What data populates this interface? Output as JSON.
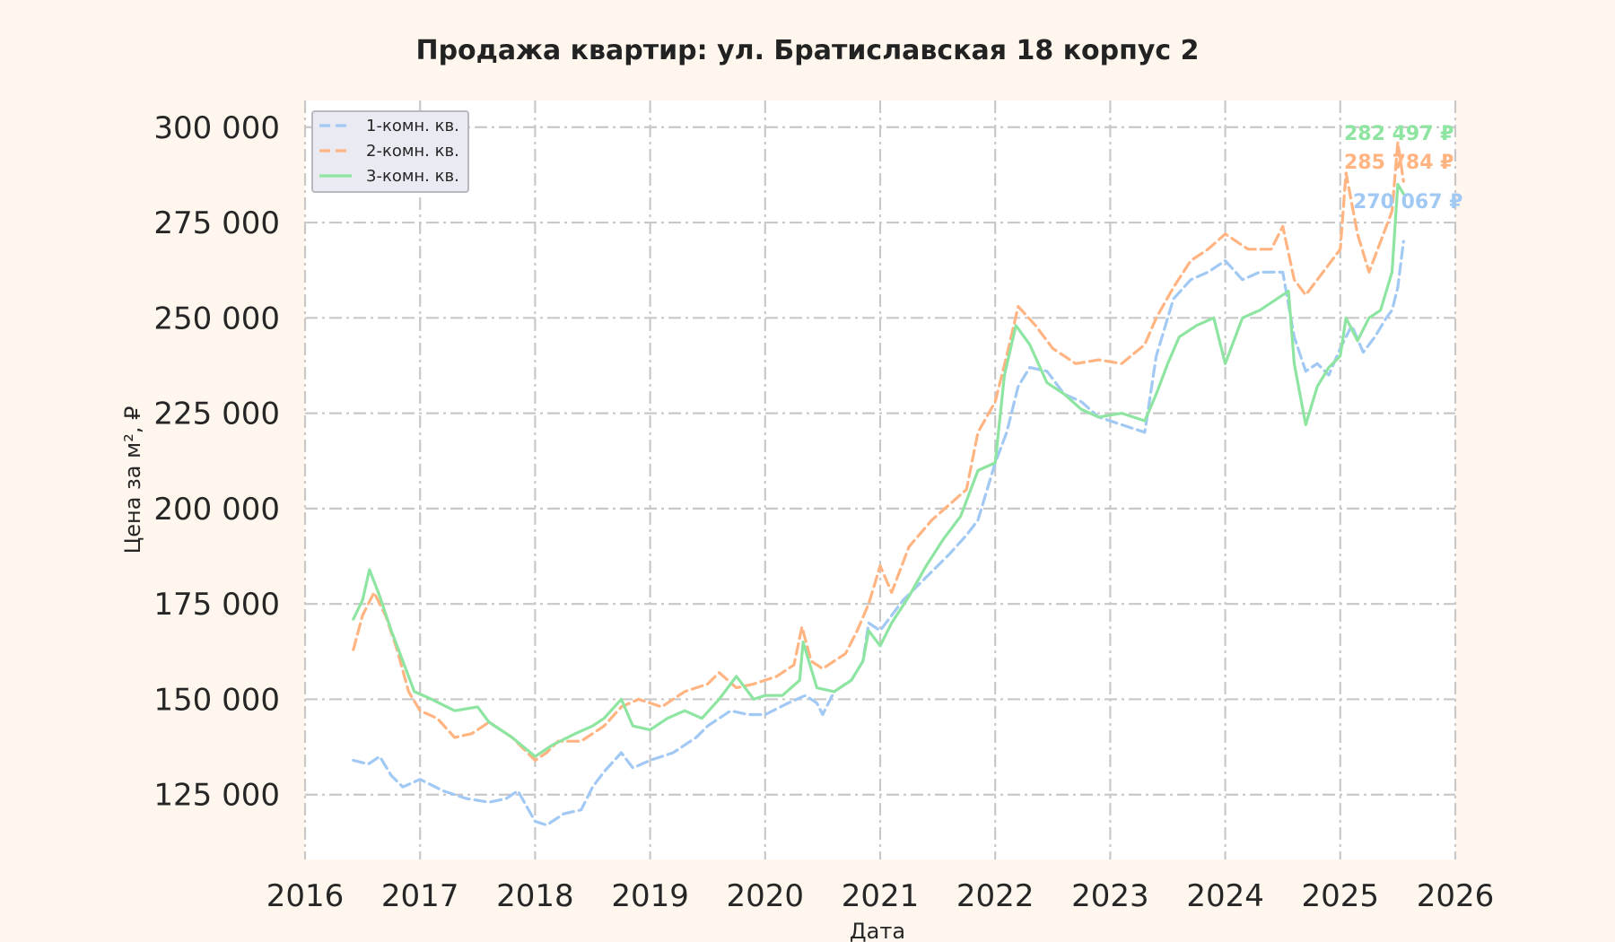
{
  "chart_data": {
    "type": "line",
    "title": "Продажа квартир: ул. Братиславская 18 корпус 2",
    "xlabel": "Дата",
    "ylabel": "Цена за м², ₽",
    "xlim": [
      2016.0,
      2026.0
    ],
    "ylim": [
      108000,
      307000
    ],
    "x_ticks": [
      "2016",
      "2017",
      "2018",
      "2019",
      "2020",
      "2021",
      "2022",
      "2023",
      "2024",
      "2025",
      "2026"
    ],
    "y_ticks": [
      {
        "value": 125000,
        "label": "125 000"
      },
      {
        "value": 150000,
        "label": "150 000"
      },
      {
        "value": 175000,
        "label": "175 000"
      },
      {
        "value": 200000,
        "label": "200 000"
      },
      {
        "value": 225000,
        "label": "225 000"
      },
      {
        "value": 250000,
        "label": "250 000"
      },
      {
        "value": 275000,
        "label": "275 000"
      },
      {
        "value": 300000,
        "label": "300 000"
      }
    ],
    "grid": true,
    "legend_position": "top-left",
    "series": [
      {
        "name": "1-комн. кв.",
        "color": "#a1c9f4",
        "dash": "dashed",
        "x": [
          2016.42,
          2016.55,
          2016.65,
          2016.75,
          2016.85,
          2017.0,
          2017.2,
          2017.4,
          2017.6,
          2017.75,
          2017.85,
          2018.0,
          2018.1,
          2018.25,
          2018.4,
          2018.5,
          2018.6,
          2018.75,
          2018.85,
          2019.0,
          2019.2,
          2019.4,
          2019.5,
          2019.6,
          2019.7,
          2019.85,
          2020.0,
          2020.2,
          2020.35,
          2020.45,
          2020.5,
          2020.6,
          2020.75,
          2020.85,
          2020.9,
          2021.0,
          2021.2,
          2021.4,
          2021.6,
          2021.75,
          2021.85,
          2022.0,
          2022.1,
          2022.2,
          2022.3,
          2022.45,
          2022.6,
          2022.75,
          2022.9,
          2023.1,
          2023.3,
          2023.4,
          2023.55,
          2023.7,
          2023.85,
          2024.0,
          2024.15,
          2024.3,
          2024.5,
          2024.6,
          2024.7,
          2024.8,
          2024.9,
          2025.0,
          2025.1,
          2025.2,
          2025.3,
          2025.4,
          2025.45,
          2025.5,
          2025.55
        ],
        "values": [
          134000,
          133000,
          135000,
          130000,
          127000,
          129000,
          126000,
          124000,
          123000,
          124000,
          126000,
          118000,
          117000,
          120000,
          121000,
          127000,
          131000,
          136000,
          132000,
          134000,
          136000,
          140000,
          143000,
          145000,
          147000,
          146000,
          146000,
          149000,
          151000,
          149000,
          146000,
          152000,
          155000,
          160000,
          170000,
          168000,
          176000,
          182000,
          188000,
          193000,
          197000,
          212000,
          220000,
          232000,
          237000,
          236000,
          230000,
          228000,
          224000,
          222000,
          220000,
          240000,
          255000,
          260000,
          262000,
          265000,
          260000,
          262000,
          262000,
          245000,
          236000,
          238000,
          235000,
          242000,
          248000,
          241000,
          245000,
          250000,
          252000,
          258000,
          270067
        ]
      },
      {
        "name": "2-комн. кв.",
        "color": "#ffb482",
        "dash": "dashed",
        "x": [
          2016.42,
          2016.5,
          2016.6,
          2016.7,
          2016.8,
          2016.9,
          2017.0,
          2017.15,
          2017.3,
          2017.45,
          2017.6,
          2017.8,
          2018.0,
          2018.1,
          2018.2,
          2018.4,
          2018.5,
          2018.6,
          2018.75,
          2018.9,
          2019.1,
          2019.3,
          2019.5,
          2019.6,
          2019.75,
          2019.9,
          2020.1,
          2020.25,
          2020.32,
          2020.4,
          2020.5,
          2020.7,
          2020.8,
          2020.9,
          2021.0,
          2021.1,
          2021.25,
          2021.45,
          2021.6,
          2021.75,
          2021.85,
          2022.0,
          2022.1,
          2022.2,
          2022.35,
          2022.5,
          2022.7,
          2022.9,
          2023.1,
          2023.3,
          2023.4,
          2023.55,
          2023.7,
          2023.85,
          2024.0,
          2024.2,
          2024.4,
          2024.5,
          2024.6,
          2024.7,
          2024.85,
          2025.0,
          2025.05,
          2025.15,
          2025.25,
          2025.35,
          2025.45,
          2025.5,
          2025.55
        ],
        "values": [
          163000,
          172000,
          178000,
          172000,
          163000,
          152000,
          147000,
          145000,
          140000,
          141000,
          144000,
          140000,
          134000,
          136000,
          139000,
          139000,
          141000,
          143000,
          148000,
          150000,
          148000,
          152000,
          154000,
          157000,
          153000,
          154000,
          156000,
          159000,
          169000,
          160000,
          158000,
          162000,
          168000,
          175000,
          185000,
          178000,
          190000,
          197000,
          201000,
          205000,
          220000,
          228000,
          240000,
          253000,
          248000,
          242000,
          238000,
          239000,
          238000,
          243000,
          250000,
          258000,
          265000,
          268000,
          272000,
          268000,
          268000,
          274000,
          260000,
          256000,
          262000,
          268000,
          288000,
          272000,
          262000,
          270000,
          278000,
          296000,
          285784
        ]
      },
      {
        "name": "3-комн. кв.",
        "color": "#8de5a1",
        "dash": "solid",
        "x": [
          2016.42,
          2016.5,
          2016.56,
          2016.65,
          2016.75,
          2016.85,
          2016.95,
          2017.1,
          2017.3,
          2017.5,
          2017.6,
          2017.8,
          2018.0,
          2018.15,
          2018.35,
          2018.5,
          2018.6,
          2018.75,
          2018.85,
          2019.0,
          2019.15,
          2019.3,
          2019.45,
          2019.6,
          2019.75,
          2019.9,
          2020.0,
          2020.15,
          2020.3,
          2020.33,
          2020.45,
          2020.6,
          2020.75,
          2020.85,
          2020.9,
          2021.0,
          2021.1,
          2021.25,
          2021.4,
          2021.55,
          2021.7,
          2021.85,
          2022.0,
          2022.08,
          2022.18,
          2022.3,
          2022.45,
          2022.6,
          2022.75,
          2022.9,
          2023.1,
          2023.3,
          2023.4,
          2023.5,
          2023.6,
          2023.75,
          2023.9,
          2024.0,
          2024.15,
          2024.3,
          2024.45,
          2024.55,
          2024.6,
          2024.7,
          2024.8,
          2024.9,
          2025.0,
          2025.05,
          2025.15,
          2025.25,
          2025.35,
          2025.45,
          2025.5,
          2025.55
        ],
        "values": [
          171000,
          176000,
          184000,
          177000,
          168000,
          160000,
          152000,
          150000,
          147000,
          148000,
          144000,
          140000,
          135000,
          138000,
          141000,
          143000,
          145000,
          150000,
          143000,
          142000,
          145000,
          147000,
          145000,
          150000,
          156000,
          150000,
          151000,
          151000,
          155000,
          165000,
          153000,
          152000,
          155000,
          160000,
          168000,
          164000,
          170000,
          177000,
          185000,
          192000,
          198000,
          210000,
          212000,
          235000,
          248000,
          243000,
          233000,
          230000,
          226000,
          224000,
          225000,
          223000,
          230000,
          238000,
          245000,
          248000,
          250000,
          238000,
          250000,
          252000,
          255000,
          257000,
          238000,
          222000,
          232000,
          237000,
          240000,
          250000,
          244000,
          250000,
          252000,
          262000,
          285000,
          282497
        ]
      }
    ],
    "end_labels": [
      {
        "series": 2,
        "text": "282 497 ₽",
        "value": 282497
      },
      {
        "series": 1,
        "text": "285 784 ₽",
        "value": 285784
      },
      {
        "series": 0,
        "text": "270 067 ₽",
        "value": 270067
      }
    ]
  }
}
